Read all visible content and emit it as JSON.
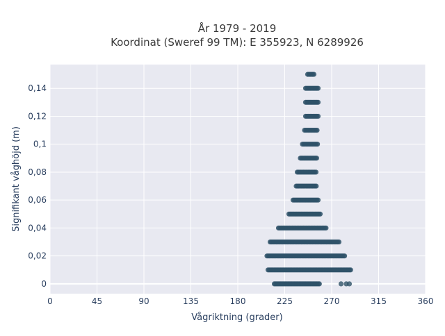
{
  "chart_data": {
    "type": "scatter",
    "title_line1": "År 1979 - 2019",
    "title_line2": "Koordinat (Sweref 99 TM): E 355923, N 6289926",
    "xlabel": "Vågriktning (grader)",
    "ylabel": "Signifikant våghöjd (m)",
    "xlim": [
      0,
      360
    ],
    "ylim": [
      -0.007,
      0.157
    ],
    "x_ticks": [
      0,
      45,
      90,
      135,
      180,
      225,
      270,
      315,
      360
    ],
    "x_tick_labels": [
      "0",
      "45",
      "90",
      "135",
      "180",
      "225",
      "270",
      "315",
      "360"
    ],
    "y_ticks": [
      0,
      0.02,
      0.04,
      0.06,
      0.08,
      0.1,
      0.12,
      0.14
    ],
    "y_tick_labels": [
      "0",
      "0,02",
      "0,04",
      "0,06",
      "0,08",
      "0,1",
      "0,12",
      "0,14"
    ],
    "grid": true,
    "marker_color": "#2f5268",
    "background_color": "#e8e9f1",
    "point_rows": [
      {
        "y": 0.0,
        "x_range": [
          215,
          259
        ],
        "outliers": [
          279,
          284,
          287
        ]
      },
      {
        "y": 0.01,
        "x_range": [
          209,
          289
        ],
        "outliers": []
      },
      {
        "y": 0.02,
        "x_range": [
          208,
          283
        ],
        "outliers": []
      },
      {
        "y": 0.03,
        "x_range": [
          211,
          277
        ],
        "outliers": []
      },
      {
        "y": 0.04,
        "x_range": [
          219,
          265
        ],
        "outliers": []
      },
      {
        "y": 0.05,
        "x_range": [
          229,
          259
        ],
        "outliers": []
      },
      {
        "y": 0.06,
        "x_range": [
          233,
          257
        ],
        "outliers": []
      },
      {
        "y": 0.07,
        "x_range": [
          236,
          256
        ],
        "outliers": []
      },
      {
        "y": 0.08,
        "x_range": [
          237,
          255
        ],
        "outliers": []
      },
      {
        "y": 0.09,
        "x_range": [
          240,
          256
        ],
        "outliers": []
      },
      {
        "y": 0.1,
        "x_range": [
          242,
          257
        ],
        "outliers": []
      },
      {
        "y": 0.11,
        "x_range": [
          244,
          257
        ],
        "outliers": []
      },
      {
        "y": 0.12,
        "x_range": [
          245,
          257
        ],
        "outliers": []
      },
      {
        "y": 0.13,
        "x_range": [
          245,
          257
        ],
        "outliers": []
      },
      {
        "y": 0.14,
        "x_range": [
          245,
          257
        ],
        "outliers": []
      },
      {
        "y": 0.15,
        "x_range": [
          247,
          254
        ],
        "outliers": []
      }
    ]
  }
}
